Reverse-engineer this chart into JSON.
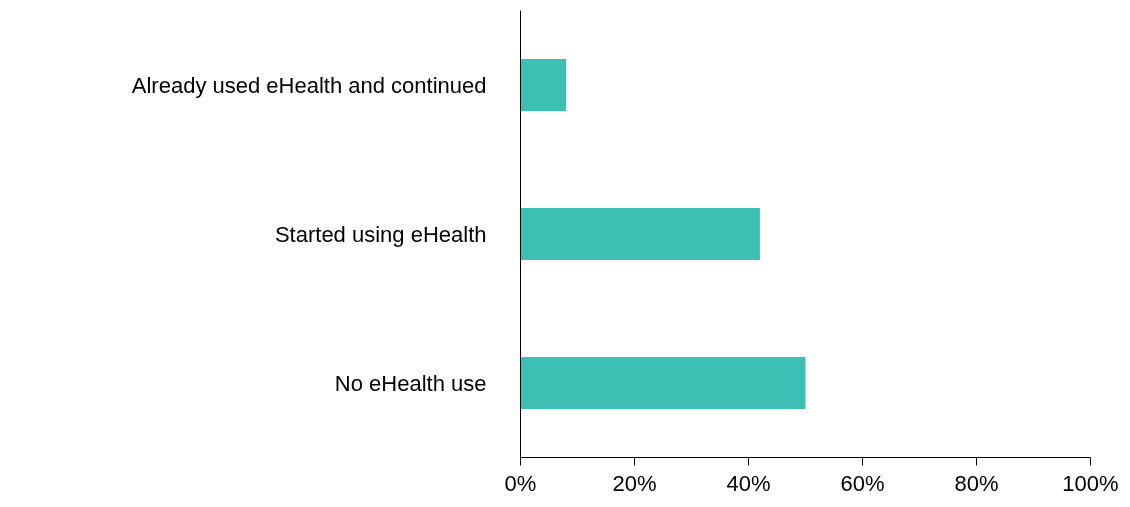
{
  "chart_data": {
    "type": "bar",
    "orientation": "horizontal",
    "categories": [
      "Already used eHealth and continued",
      "Started using eHealth",
      "No eHealth use"
    ],
    "values": [
      8,
      42,
      50
    ],
    "color": "#3dbfb4",
    "xlim": [
      0,
      100
    ],
    "xticks": [
      {
        "value": 0,
        "label": "0%"
      },
      {
        "value": 20,
        "label": "20%"
      },
      {
        "value": 40,
        "label": "40%"
      },
      {
        "value": 60,
        "label": "60%"
      },
      {
        "value": 80,
        "label": "80%"
      },
      {
        "value": 100,
        "label": "100%"
      }
    ],
    "grid": false
  }
}
